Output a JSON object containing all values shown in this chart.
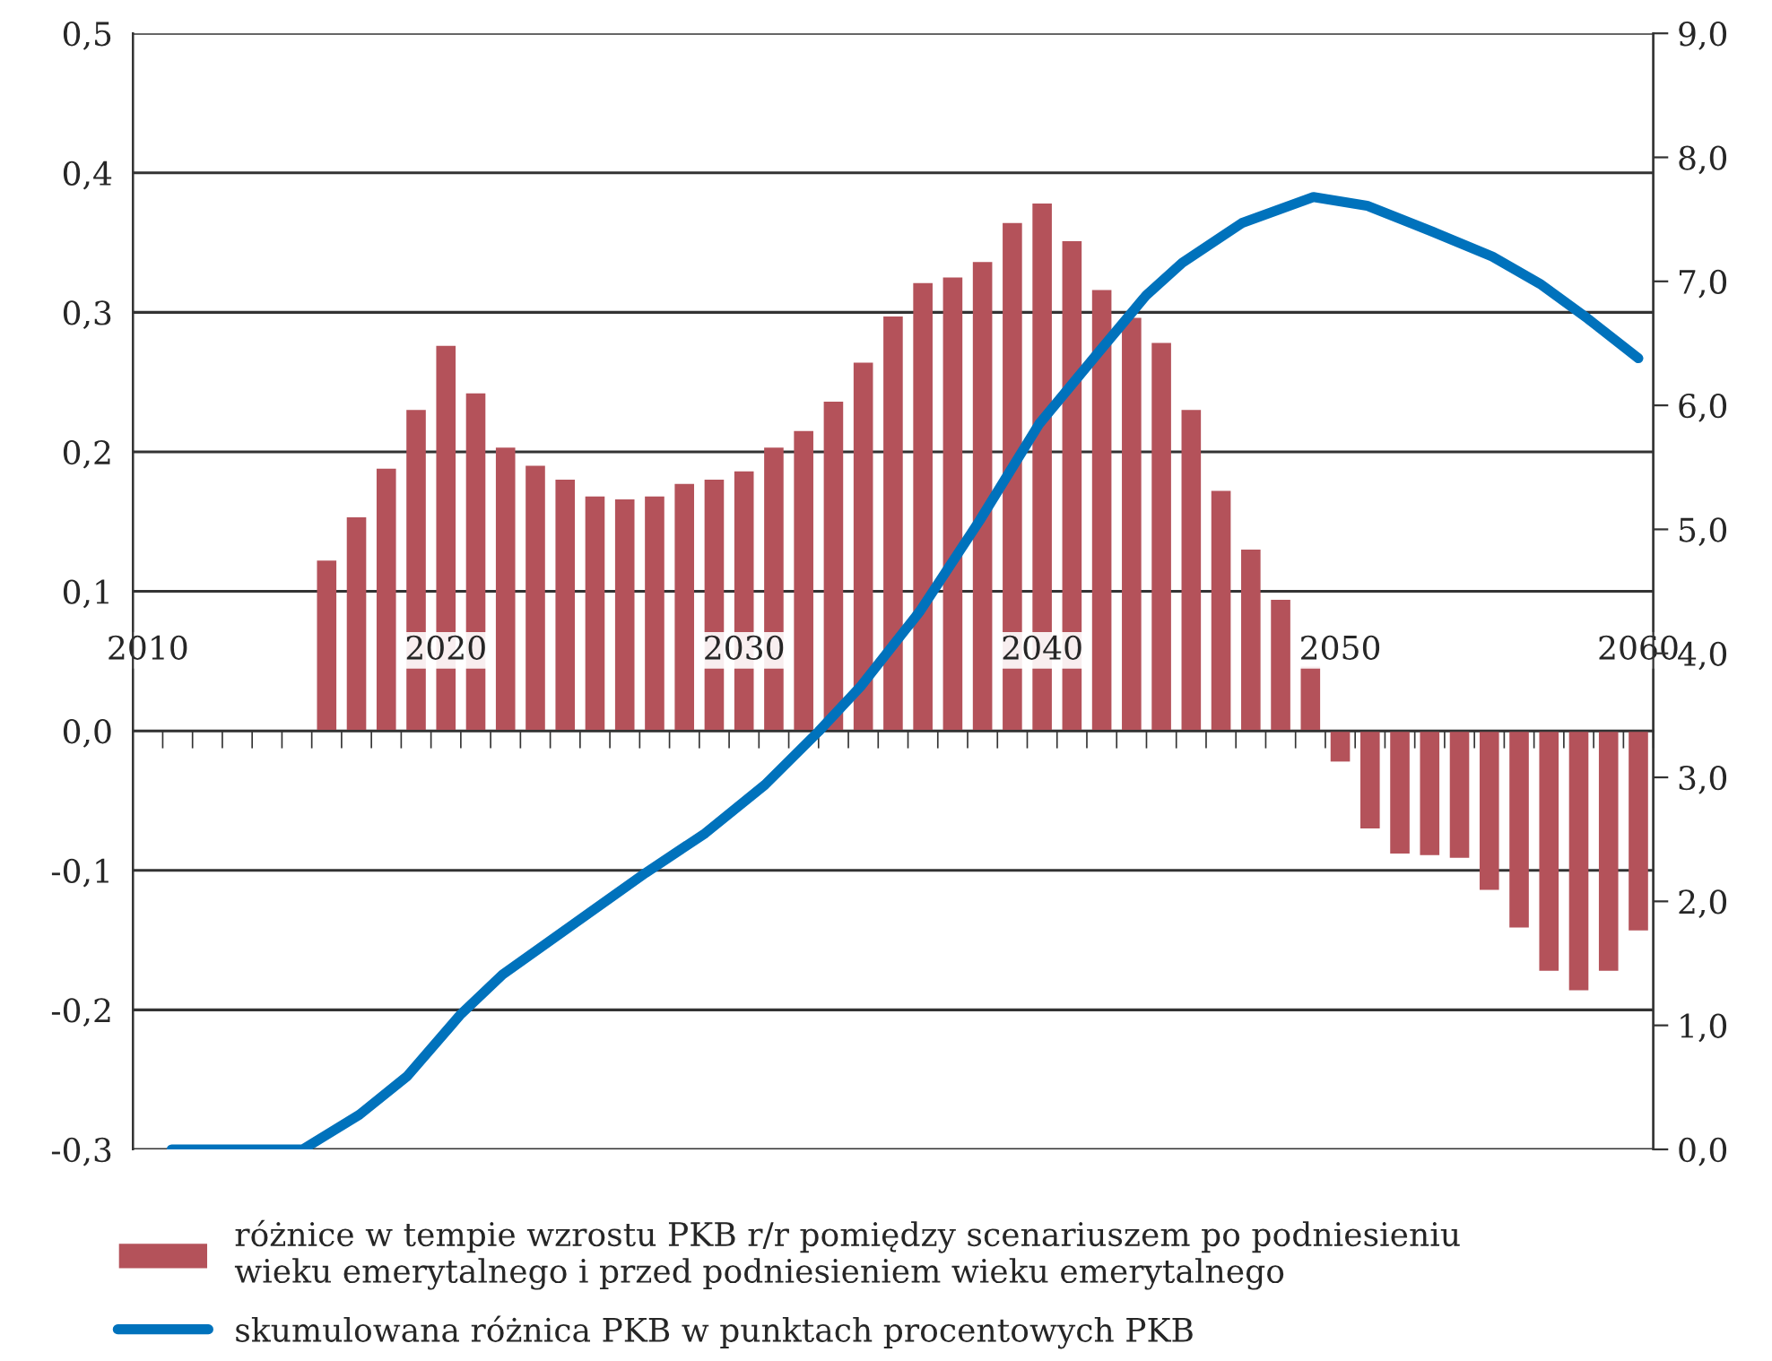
{
  "chart_data": {
    "type": "bar",
    "series": [
      {
        "x": [
          2016,
          2017,
          2018,
          2019,
          2020,
          2021,
          2022,
          2023,
          2024,
          2025,
          2026,
          2027,
          2028,
          2029,
          2030,
          2031,
          2032,
          2033,
          2034,
          2035,
          2036,
          2037,
          2038,
          2039,
          2040,
          2041,
          2042,
          2043,
          2044,
          2045,
          2046,
          2047,
          2048,
          2049,
          2050,
          2051,
          2052,
          2053,
          2054,
          2055,
          2056,
          2057,
          2058,
          2059,
          2060
        ],
        "name": "różnice w tempie wzrostu PKB r/r pomiędzy scenariuszem po podniesieniu\nwieku emerytalnego i przed podniesieniem wieku emerytalnego",
        "color": "#b4525a",
        "values": [
          0.122,
          0.153,
          0.188,
          0.23,
          0.276,
          0.242,
          0.203,
          0.19,
          0.18,
          0.168,
          0.166,
          0.168,
          0.177,
          0.18,
          0.186,
          0.203,
          0.215,
          0.236,
          0.264,
          0.297,
          0.321,
          0.325,
          0.336,
          0.364,
          0.378,
          0.351,
          0.316,
          0.296,
          0.278,
          0.23,
          0.172,
          0.13,
          0.094,
          0.046,
          -0.022,
          -0.07,
          -0.088,
          -0.089,
          -0.091,
          -0.114,
          -0.141,
          -0.172,
          -0.186,
          -0.172,
          -0.143
        ]
      },
      {
        "name": "skumulowana różnica PKB w punktach procentowych PKB",
        "type": "line",
        "axis": "y2",
        "color": "#0072bc",
        "x": [
          2010.8,
          2015.2,
          2017.1,
          2018.7,
          2020.5,
          2021.9,
          2024.3,
          2026.7,
          2028.7,
          2030.7,
          2032.5,
          2033.9,
          2035.9,
          2037.9,
          2039.9,
          2041.9,
          2043.5,
          2044.7,
          2046.7,
          2049.1,
          2050.9,
          2053.1,
          2055.1,
          2056.7,
          2058.3,
          2060.0
        ],
        "values": [
          0,
          0,
          0.28,
          0.59,
          1.09,
          1.41,
          1.82,
          2.23,
          2.55,
          2.94,
          3.37,
          3.73,
          4.34,
          5.07,
          5.85,
          6.43,
          6.89,
          7.15,
          7.47,
          7.68,
          7.61,
          7.4,
          7.2,
          6.98,
          6.7,
          6.38
        ]
      }
    ],
    "xlim": [
      2009.5,
      2060.5
    ],
    "xticks": [
      2010,
      2020,
      2030,
      2040,
      2050,
      2060
    ],
    "ylim": [
      -0.3,
      0.5
    ],
    "yticks": [
      {
        "value": -0.3,
        "label": "-0,3"
      },
      {
        "value": -0.2,
        "label": "-0,2"
      },
      {
        "value": -0.1,
        "label": "-0,1"
      },
      {
        "value": 0,
        "label": "0,0"
      },
      {
        "value": 0.1,
        "label": "0,1"
      },
      {
        "value": 0.2,
        "label": "0,2"
      },
      {
        "value": 0.3,
        "label": "0,3"
      },
      {
        "value": 0.4,
        "label": "0,4"
      },
      {
        "value": 0.5,
        "label": "0,5"
      }
    ],
    "y2lim": [
      0,
      9
    ],
    "y2ticks": [
      {
        "value": 0,
        "label": "0,0"
      },
      {
        "value": 1,
        "label": "1,0"
      },
      {
        "value": 2,
        "label": "2,0"
      },
      {
        "value": 3,
        "label": "3,0"
      },
      {
        "value": 4,
        "label": "4,0"
      },
      {
        "value": 5,
        "label": "5,0"
      },
      {
        "value": 6,
        "label": "6,0"
      },
      {
        "value": 7,
        "label": "7,0"
      },
      {
        "value": 8,
        "label": "8,0"
      },
      {
        "value": 9,
        "label": "9,0"
      }
    ],
    "grid": "y",
    "legend": "bottom"
  }
}
